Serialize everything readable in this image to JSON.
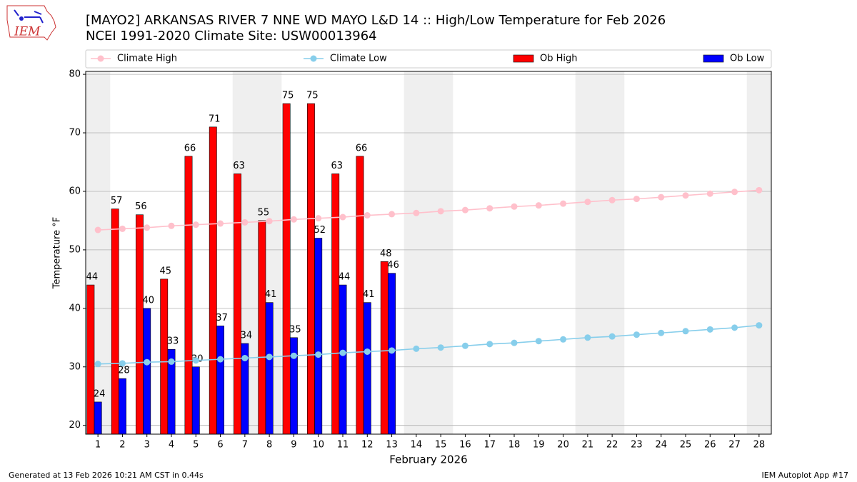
{
  "logo_text": "IEM",
  "footer": {
    "left": "Generated at 13 Feb 2026 10:21 AM CST in 0.44s",
    "right": "IEM Autoplot App #17"
  },
  "chart_data": {
    "type": "bar_line",
    "title": "[MAYO2] ARKANSAS RIVER 7 NNE WD MAYO L&D 14 :: High/Low Temperature for Feb 2026",
    "subtitle": "NCEI 1991-2020 Climate Site: USW00013964",
    "xlabel": "February 2026",
    "ylabel": "Temperature °F",
    "x": [
      1,
      2,
      3,
      4,
      5,
      6,
      7,
      8,
      9,
      10,
      11,
      12,
      13,
      14,
      15,
      16,
      17,
      18,
      19,
      20,
      21,
      22,
      23,
      24,
      25,
      26,
      27,
      28
    ],
    "series": [
      {
        "name": "Climate High",
        "kind": "line",
        "color": "#ffc0cb",
        "values": [
          53.4,
          53.6,
          53.8,
          54.1,
          54.3,
          54.5,
          54.7,
          54.9,
          55.2,
          55.4,
          55.6,
          55.9,
          56.1,
          56.3,
          56.6,
          56.8,
          57.1,
          57.4,
          57.6,
          57.9,
          58.2,
          58.5,
          58.7,
          59.0,
          59.3,
          59.6,
          59.9,
          60.2
        ]
      },
      {
        "name": "Climate Low",
        "kind": "line",
        "color": "#87ceeb",
        "values": [
          30.5,
          30.6,
          30.8,
          30.9,
          31.1,
          31.3,
          31.5,
          31.7,
          31.9,
          32.1,
          32.4,
          32.6,
          32.8,
          33.1,
          33.3,
          33.6,
          33.9,
          34.1,
          34.4,
          34.7,
          35.0,
          35.2,
          35.5,
          35.8,
          36.1,
          36.4,
          36.7,
          37.1
        ]
      },
      {
        "name": "Ob High",
        "kind": "bar",
        "color": "#ff0000",
        "values": [
          44,
          57,
          56,
          45,
          66,
          71,
          63,
          55,
          75,
          75,
          63,
          66,
          48,
          null,
          null,
          null,
          null,
          null,
          null,
          null,
          null,
          null,
          null,
          null,
          null,
          null,
          null,
          null
        ]
      },
      {
        "name": "Ob Low",
        "kind": "bar",
        "color": "#0000ff",
        "values": [
          24,
          28,
          40,
          33,
          30,
          37,
          34,
          41,
          35,
          52,
          44,
          41,
          46,
          null,
          null,
          null,
          null,
          null,
          null,
          null,
          null,
          null,
          null,
          null,
          null,
          null,
          null,
          null
        ]
      }
    ],
    "shaded_days": [
      1,
      7,
      8,
      14,
      15,
      21,
      22,
      28
    ],
    "xlim": [
      0.5,
      28.5
    ],
    "ylim": [
      18.5,
      80.5
    ],
    "xticks": [
      1,
      2,
      3,
      4,
      5,
      6,
      7,
      8,
      9,
      10,
      11,
      12,
      13,
      14,
      15,
      16,
      17,
      18,
      19,
      20,
      21,
      22,
      23,
      24,
      25,
      26,
      27,
      28
    ],
    "yticks": [
      20,
      30,
      40,
      50,
      60,
      70,
      80
    ],
    "grid": true
  }
}
